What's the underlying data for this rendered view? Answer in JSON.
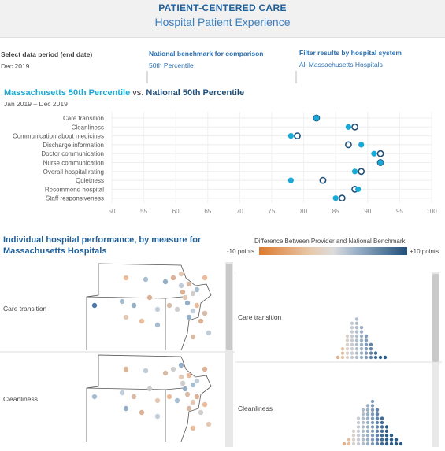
{
  "header": {
    "title": "PATIENT-CENTERED CARE",
    "subtitle": "Hospital Patient Experience"
  },
  "filters": [
    {
      "label": "Select data period (end date)",
      "value": "Dec 2019"
    },
    {
      "label": "National benchmark for comparison",
      "value": "50th Percentile"
    },
    {
      "label": "Filter results by hospital system",
      "value": "All Massachusetts Hospitals"
    }
  ],
  "dot_chart": {
    "title_part1": "Massachusetts 50th Percentile",
    "title_vs": "vs.",
    "title_part2": "National 50th Percentile",
    "period": "Jan 2019 – Dec 2019"
  },
  "chart_data": {
    "type": "scatter",
    "categories": [
      "Care transition",
      "Cleanliness",
      "Communication about medicines",
      "Discharge information",
      "Doctor communication",
      "Nurse communication",
      "Overall hospital rating",
      "Quietness",
      "Recommend hospital",
      "Staff responsiveness"
    ],
    "series": [
      {
        "values": [
          82,
          87,
          78,
          89,
          91,
          92,
          88,
          78,
          88.5,
          85
        ]
      },
      {
        "values": [
          82,
          88,
          79,
          87,
          92,
          92,
          89,
          83,
          88,
          86
        ]
      }
    ],
    "x_ticks": [
      50,
      55,
      60,
      65,
      70,
      75,
      80,
      85,
      90,
      95,
      100
    ],
    "xlim": [
      50,
      100
    ],
    "grid": true
  },
  "colors": {
    "ma": "#19a9d6",
    "national": "#1f4e79",
    "neg": "#dd7a2e",
    "pos": "#1f4e79"
  },
  "section2": {
    "title_line1": "Individual hospital performance, by measure for",
    "title_line2": "Massachusetts Hospitals"
  },
  "legend": {
    "title": "Difference Between Provider and National Benchmark",
    "low": "-10 points",
    "high": "+10 points"
  },
  "measures_shown": [
    "Care transition",
    "Cleanliness"
  ]
}
